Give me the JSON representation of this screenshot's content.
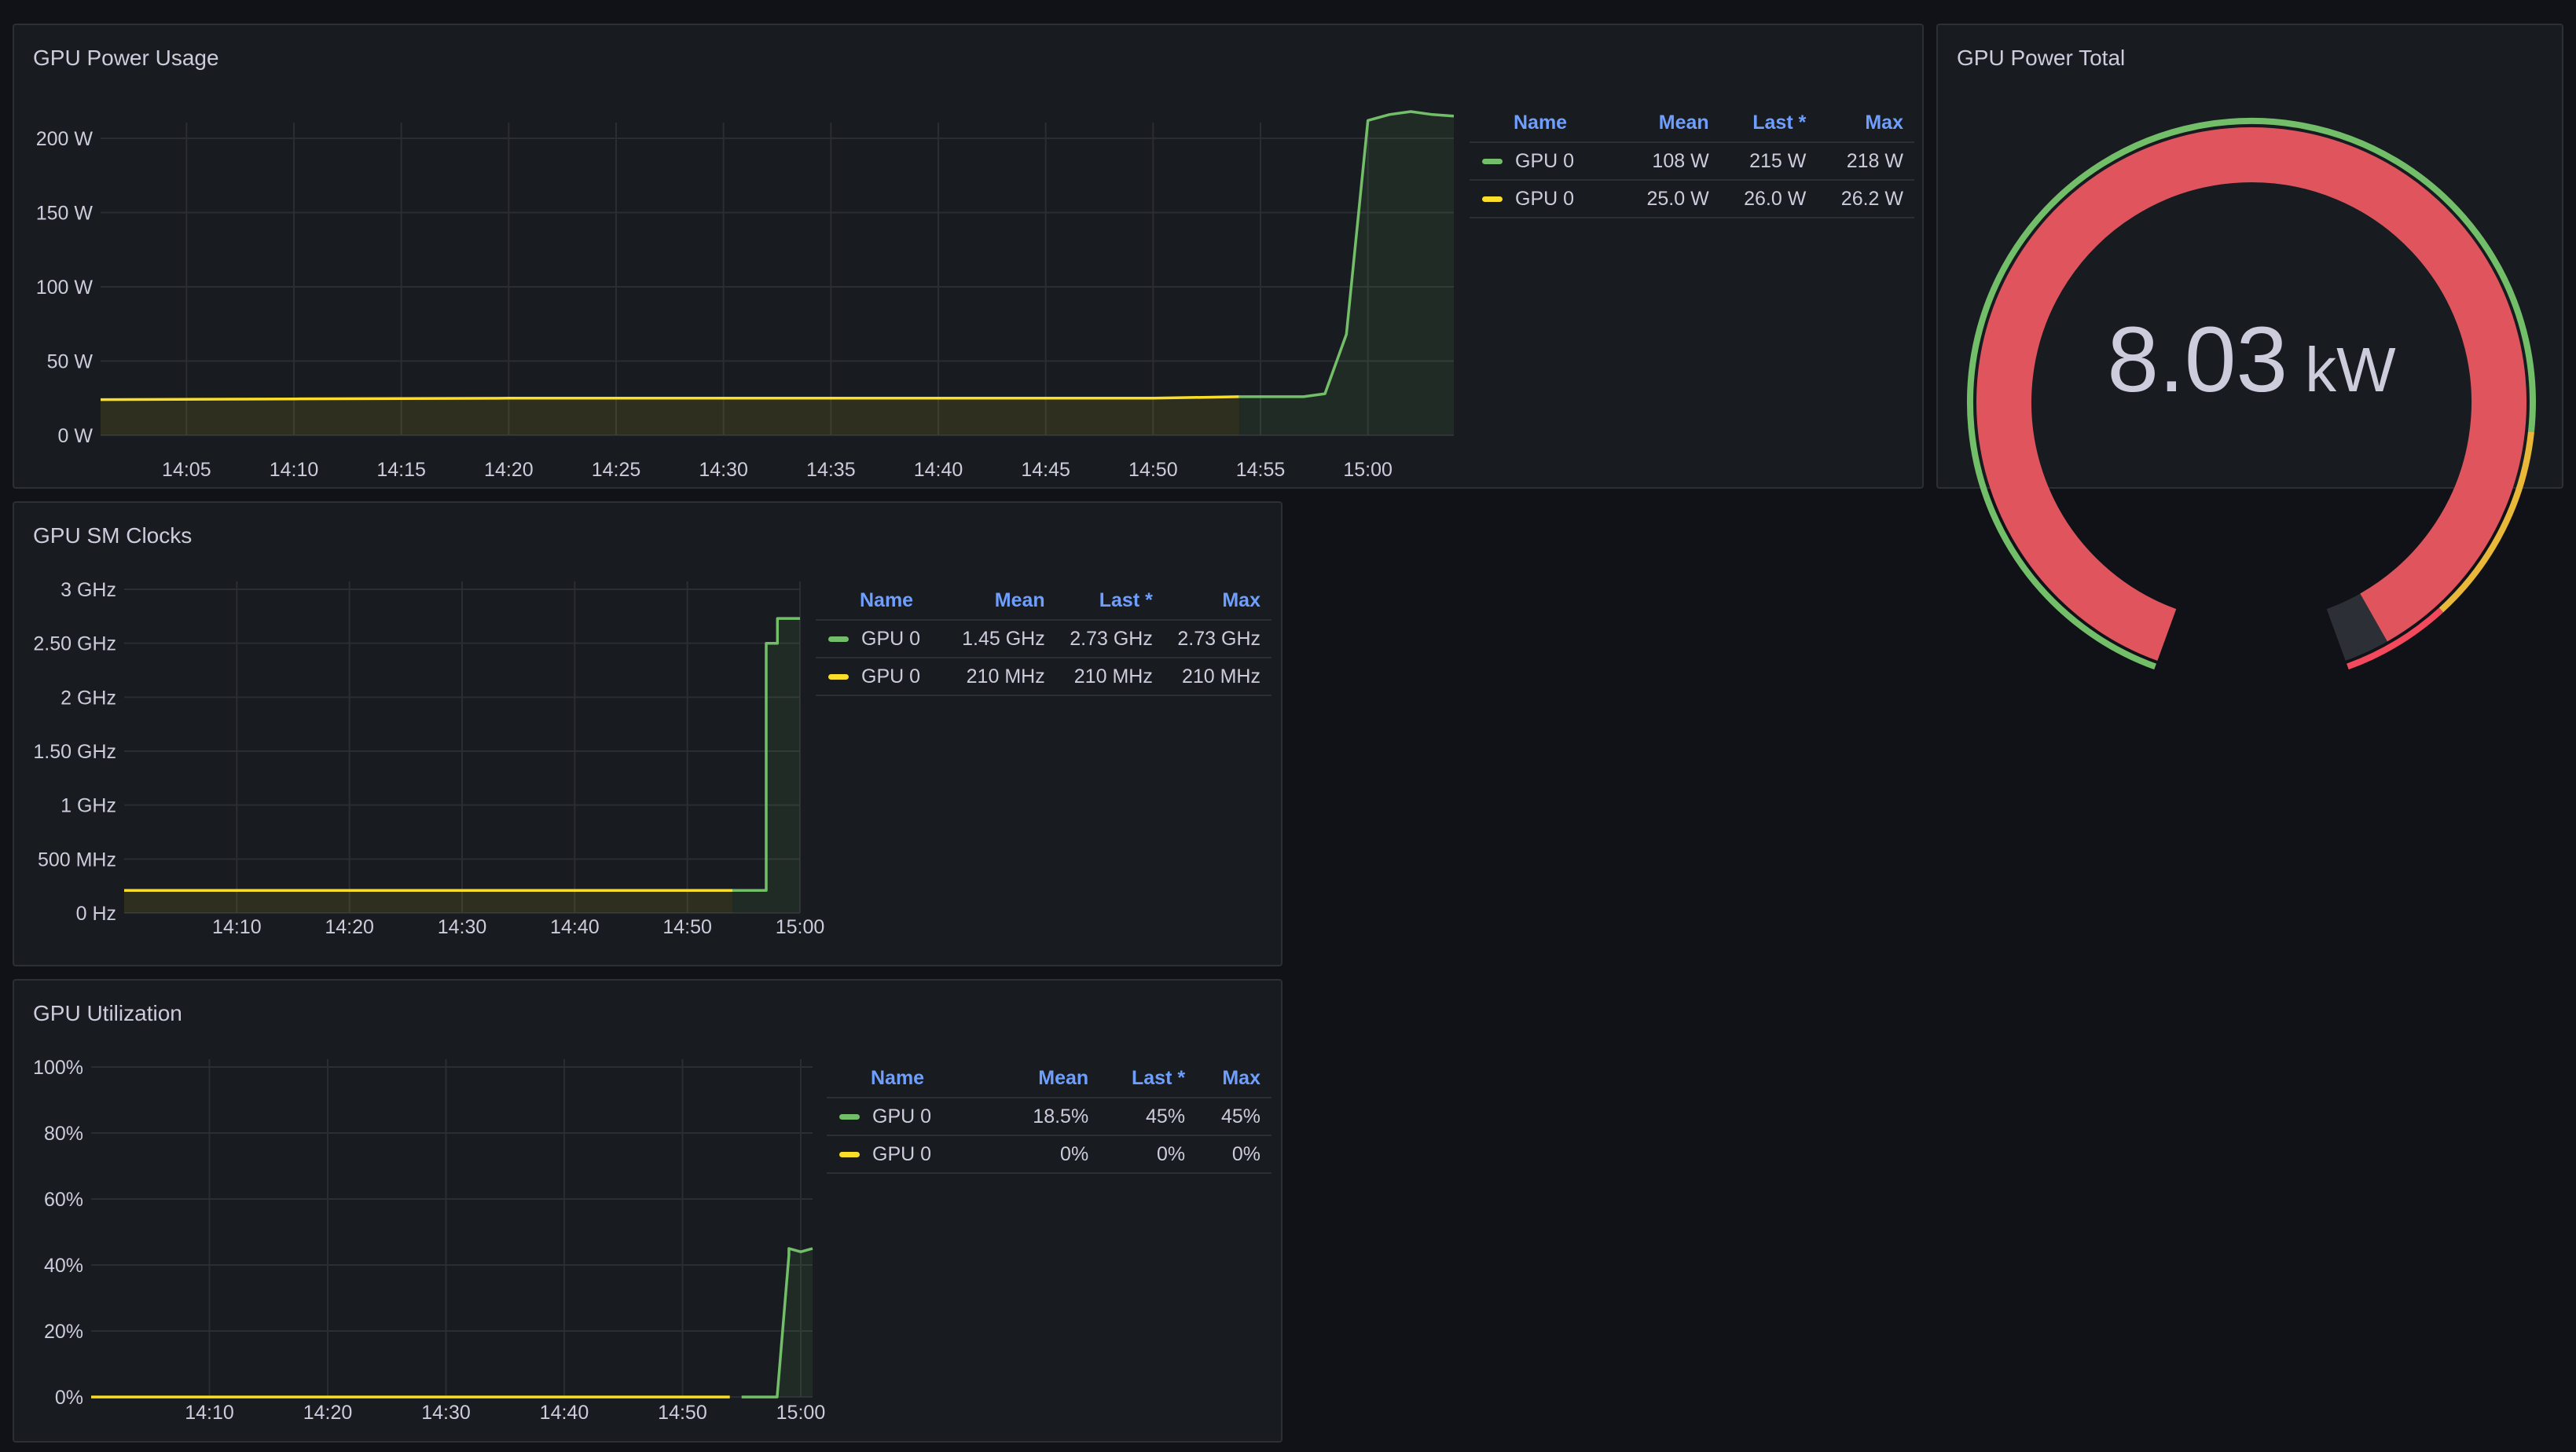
{
  "panels": {
    "power_usage": {
      "title": "GPU Power Usage",
      "legend": {
        "headers": [
          "Name",
          "Mean",
          "Last *",
          "Max"
        ],
        "rows": [
          {
            "name": "GPU 0",
            "mean": "108 W",
            "last": "215 W",
            "max": "218 W",
            "color": "#73bf69"
          },
          {
            "name": "GPU 0",
            "mean": "25.0 W",
            "last": "26.0 W",
            "max": "26.2 W",
            "color": "#fade2a"
          }
        ]
      }
    },
    "power_total": {
      "title": "GPU Power Total",
      "value": "8.03",
      "unit": "kW"
    },
    "sm_clocks": {
      "title": "GPU SM Clocks",
      "legend": {
        "headers": [
          "Name",
          "Mean",
          "Last *",
          "Max"
        ],
        "rows": [
          {
            "name": "GPU 0",
            "mean": "1.45 GHz",
            "last": "2.73 GHz",
            "max": "2.73 GHz",
            "color": "#73bf69"
          },
          {
            "name": "GPU 0",
            "mean": "210 MHz",
            "last": "210 MHz",
            "max": "210 MHz",
            "color": "#fade2a"
          }
        ]
      }
    },
    "utilization": {
      "title": "GPU Utilization",
      "legend": {
        "headers": [
          "Name",
          "Mean",
          "Last *",
          "Max"
        ],
        "rows": [
          {
            "name": "GPU 0",
            "mean": "18.5%",
            "last": "45%",
            "max": "45%",
            "color": "#73bf69"
          },
          {
            "name": "GPU 0",
            "mean": "0%",
            "last": "0%",
            "max": "0%",
            "color": "#fade2a"
          }
        ]
      }
    }
  },
  "chart_data": [
    {
      "id": "power_usage",
      "type": "line",
      "ylabels": [
        "0 W",
        "50 W",
        "100 W",
        "150 W",
        "200 W"
      ],
      "yticks": [
        0,
        50,
        100,
        150,
        200
      ],
      "ylim": [
        0,
        240
      ],
      "xlabels": [
        "14:05",
        "14:10",
        "14:15",
        "14:20",
        "14:25",
        "14:30",
        "14:35",
        "14:40",
        "14:45",
        "14:50",
        "14:55",
        "15:00"
      ],
      "xticks": [
        4.05,
        4.1,
        4.15,
        4.2,
        4.25,
        4.3,
        4.35,
        4.4,
        4.45,
        4.5,
        4.55,
        5.0
      ],
      "series": [
        {
          "color": "#fade2a",
          "points": [
            [
              4.01,
              24
            ],
            [
              4.1,
              24.5
            ],
            [
              4.2,
              25
            ],
            [
              4.3,
              25
            ],
            [
              4.4,
              25
            ],
            [
              4.5,
              25
            ],
            [
              4.54,
              26
            ]
          ]
        },
        {
          "color": "#73bf69",
          "points": [
            [
              4.545,
              26
            ],
            [
              4.57,
              26
            ],
            [
              4.58,
              28
            ],
            [
              4.59,
              68
            ],
            [
              4.595,
              68
            ],
            [
              4.6,
              212
            ],
            [
              4.61,
              216
            ],
            [
              4.62,
              218
            ],
            [
              4.63,
              216
            ],
            [
              4.64,
              215
            ]
          ]
        }
      ]
    },
    {
      "id": "sm_clocks",
      "type": "line",
      "ylabels": [
        "0 Hz",
        "500 MHz",
        "1 GHz",
        "1.50 GHz",
        "2 GHz",
        "2.50 GHz",
        "3 GHz"
      ],
      "yticks": [
        0,
        500,
        1000,
        1500,
        2000,
        2500,
        3000
      ],
      "ylim": [
        0,
        3000
      ],
      "xlabels": [
        "14:10",
        "14:20",
        "14:30",
        "14:40",
        "14:50",
        "15:00"
      ],
      "xticks": [
        4.1,
        4.2,
        4.3,
        4.4,
        4.5,
        5.0
      ],
      "series": [
        {
          "color": "#fade2a",
          "points": [
            [
              4.0,
              210
            ],
            [
              4.54,
              210
            ]
          ]
        },
        {
          "color": "#73bf69",
          "points": [
            [
              4.545,
              210
            ],
            [
              4.57,
              210
            ],
            [
              4.573,
              2500
            ],
            [
              4.575,
              2500
            ],
            [
              4.58,
              2730
            ],
            [
              4.6,
              2730
            ]
          ]
        }
      ]
    },
    {
      "id": "utilization",
      "type": "line",
      "ylabels": [
        "0%",
        "20%",
        "40%",
        "60%",
        "80%",
        "100%"
      ],
      "yticks": [
        0,
        20,
        40,
        60,
        80,
        100
      ],
      "ylim": [
        0,
        100
      ],
      "xlabels": [
        "14:10",
        "14:20",
        "14:30",
        "14:40",
        "14:50",
        "15:00"
      ],
      "xticks": [
        4.1,
        4.2,
        4.3,
        4.4,
        4.5,
        5.0
      ],
      "series": [
        {
          "color": "#fade2a",
          "points": [
            [
              4.0,
              0
            ],
            [
              4.545,
              0
            ]
          ]
        },
        {
          "color": "#73bf69",
          "points": [
            [
              4.55,
              0
            ],
            [
              4.58,
              0
            ],
            [
              4.585,
              43
            ],
            [
              4.59,
              45
            ],
            [
              4.6,
              44
            ],
            [
              4.605,
              45
            ],
            [
              4.61,
              45
            ]
          ]
        }
      ]
    }
  ],
  "gauge": {
    "value_fraction": 0.97,
    "thresholds": [
      {
        "color": "#73bf69",
        "to": 0.8
      },
      {
        "color": "#eab839",
        "to": 0.93
      },
      {
        "color": "#f2495c",
        "to": 1.0
      }
    ],
    "fill_color": "#e0545e"
  }
}
